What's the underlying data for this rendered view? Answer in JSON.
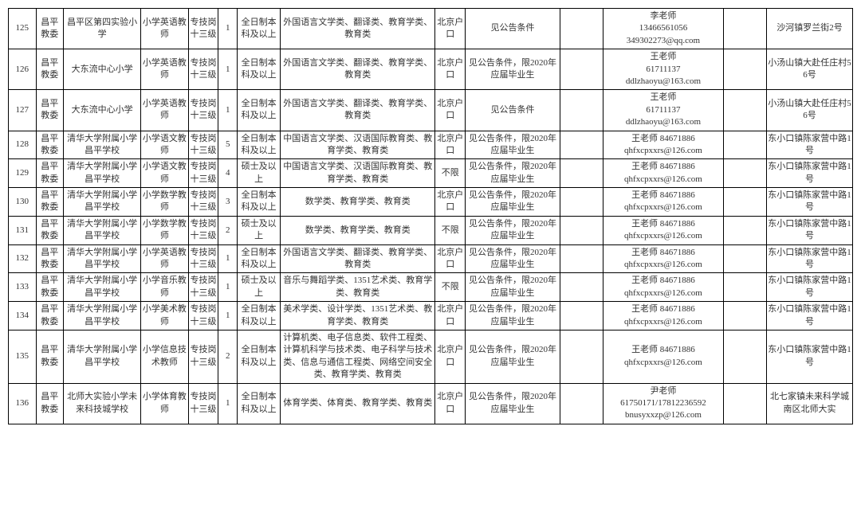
{
  "table": {
    "border_color": "#000000",
    "background_color": "#ffffff",
    "font_family": "SimSun",
    "font_size": 11,
    "text_color": "#333333",
    "column_widths_pct": [
      3.2,
      3.2,
      9,
      5.5,
      3.5,
      2.2,
      5,
      18,
      3.5,
      11,
      5,
      14,
      5,
      10
    ],
    "rows": [
      {
        "id": "125",
        "dept": "昌平教委",
        "school": "昌平区第四实验小学",
        "post": "小学英语教师",
        "level": "专技岗十三级",
        "qty": "1",
        "edu": "全日制本科及以上",
        "major": "外国语言文学类、翻译类、教育学类、教育类",
        "hukou": "北京户口",
        "cond": "见公告条件",
        "blank": "",
        "contact": "李老师\n13466561056\n349302273@qq.com",
        "blank2": "",
        "addr": "沙河镇罗兰街2号"
      },
      {
        "id": "126",
        "dept": "昌平教委",
        "school": "大东流中心小学",
        "post": "小学英语教师",
        "level": "专技岗十三级",
        "qty": "1",
        "edu": "全日制本科及以上",
        "major": "外国语言文学类、翻译类、教育学类、教育类",
        "hukou": "北京户口",
        "cond": "见公告条件，限2020年应届毕业生",
        "blank": "",
        "contact": "王老师\n61711137\nddlzhaoyu@163.com",
        "blank2": "",
        "addr": "小汤山镇大赴任庄村56号"
      },
      {
        "id": "127",
        "dept": "昌平教委",
        "school": "大东流中心小学",
        "post": "小学英语教师",
        "level": "专技岗十三级",
        "qty": "1",
        "edu": "全日制本科及以上",
        "major": "外国语言文学类、翻译类、教育学类、教育类",
        "hukou": "北京户口",
        "cond": "见公告条件",
        "blank": "",
        "contact": "王老师\n61711137\nddlzhaoyu@163.com",
        "blank2": "",
        "addr": "小汤山镇大赴任庄村56号"
      },
      {
        "id": "128",
        "dept": "昌平教委",
        "school": "清华大学附属小学昌平学校",
        "post": "小学语文教师",
        "level": "专技岗十三级",
        "qty": "5",
        "edu": "全日制本科及以上",
        "major": "中国语言文学类、汉语国际教育类、教育学类、教育类",
        "hukou": "北京户口",
        "cond": "见公告条件，限2020年应届毕业生",
        "blank": "",
        "contact": "王老师 84671886\nqhfxcpxxrs@126.com",
        "blank2": "",
        "addr": "东小口镇陈家营中路1号"
      },
      {
        "id": "129",
        "dept": "昌平教委",
        "school": "清华大学附属小学昌平学校",
        "post": "小学语文教师",
        "level": "专技岗十三级",
        "qty": "4",
        "edu": "硕士及以上",
        "major": "中国语言文学类、汉语国际教育类、教育学类、教育类",
        "hukou": "不限",
        "cond": "见公告条件，限2020年应届毕业生",
        "blank": "",
        "contact": "王老师 84671886\nqhfxcpxxrs@126.com",
        "blank2": "",
        "addr": "东小口镇陈家营中路1号"
      },
      {
        "id": "130",
        "dept": "昌平教委",
        "school": "清华大学附属小学昌平学校",
        "post": "小学数学教师",
        "level": "专技岗十三级",
        "qty": "3",
        "edu": "全日制本科及以上",
        "major": "数学类、教育学类、教育类",
        "hukou": "北京户口",
        "cond": "见公告条件，限2020年应届毕业生",
        "blank": "",
        "contact": "王老师 84671886\nqhfxcpxxrs@126.com",
        "blank2": "",
        "addr": "东小口镇陈家营中路1号"
      },
      {
        "id": "131",
        "dept": "昌平教委",
        "school": "清华大学附属小学昌平学校",
        "post": "小学数学教师",
        "level": "专技岗十三级",
        "qty": "2",
        "edu": "硕士及以上",
        "major": "数学类、教育学类、教育类",
        "hukou": "不限",
        "cond": "见公告条件，限2020年应届毕业生",
        "blank": "",
        "contact": "王老师 84671886\nqhfxcpxxrs@126.com",
        "blank2": "",
        "addr": "东小口镇陈家营中路1号"
      },
      {
        "id": "132",
        "dept": "昌平教委",
        "school": "清华大学附属小学昌平学校",
        "post": "小学英语教师",
        "level": "专技岗十三级",
        "qty": "1",
        "edu": "全日制本科及以上",
        "major": "外国语言文学类、翻译类、教育学类、教育类",
        "hukou": "北京户口",
        "cond": "见公告条件，限2020年应届毕业生",
        "blank": "",
        "contact": "王老师 84671886\nqhfxcpxxrs@126.com",
        "blank2": "",
        "addr": "东小口镇陈家营中路1号"
      },
      {
        "id": "133",
        "dept": "昌平教委",
        "school": "清华大学附属小学昌平学校",
        "post": "小学音乐教师",
        "level": "专技岗十三级",
        "qty": "1",
        "edu": "硕士及以上",
        "major": "音乐与舞蹈学类、1351艺术类、教育学类、教育类",
        "hukou": "不限",
        "cond": "见公告条件，限2020年应届毕业生",
        "blank": "",
        "contact": "王老师 84671886\nqhfxcpxxrs@126.com",
        "blank2": "",
        "addr": "东小口镇陈家营中路1号"
      },
      {
        "id": "134",
        "dept": "昌平教委",
        "school": "清华大学附属小学昌平学校",
        "post": "小学美术教师",
        "level": "专技岗十三级",
        "qty": "1",
        "edu": "全日制本科及以上",
        "major": "美术学类、设计学类、1351艺术类、教育学类、教育类",
        "hukou": "北京户口",
        "cond": "见公告条件，限2020年应届毕业生",
        "blank": "",
        "contact": "王老师 84671886\nqhfxcpxxrs@126.com",
        "blank2": "",
        "addr": "东小口镇陈家营中路1号"
      },
      {
        "id": "135",
        "dept": "昌平教委",
        "school": "清华大学附属小学昌平学校",
        "post": "小学信息技术教师",
        "level": "专技岗十三级",
        "qty": "2",
        "edu": "全日制本科及以上",
        "major": "计算机类、电子信息类、软件工程类、计算机科学与技术类、电子科学与技术类、信息与通信工程类、网络空间安全类、教育学类、教育类",
        "hukou": "北京户口",
        "cond": "见公告条件，限2020年应届毕业生",
        "blank": "",
        "contact": "王老师 84671886\nqhfxcpxxrs@126.com",
        "blank2": "",
        "addr": "东小口镇陈家营中路1号"
      },
      {
        "id": "136",
        "dept": "昌平教委",
        "school": "北师大实验小学未来科技城学校",
        "post": "小学体育教师",
        "level": "专技岗十三级",
        "qty": "1",
        "edu": "全日制本科及以上",
        "major": "体育学类、体育类、教育学类、教育类",
        "hukou": "北京户口",
        "cond": "见公告条件，限2020年应届毕业生",
        "blank": "",
        "contact": "尹老师\n61750171/17812236592\nbnusyxxzp@126.com",
        "blank2": "",
        "addr": "北七家镇未来科学城南区北师大实"
      }
    ]
  }
}
